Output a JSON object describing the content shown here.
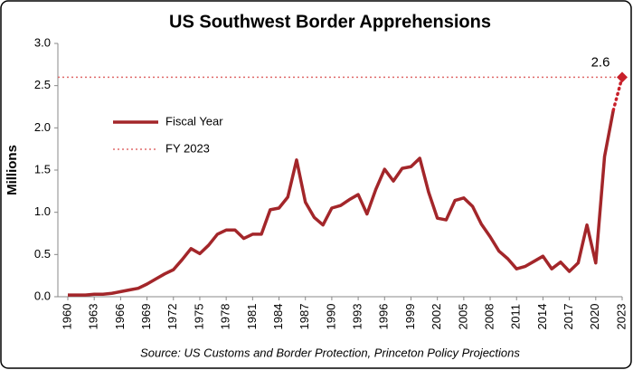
{
  "chart_data": {
    "type": "line",
    "title": "US Southwest Border Apprehensions",
    "ylabel": "Millions",
    "source": "Source: US Customs and Border Protection, Princeton Policy Projections",
    "x": [
      1960,
      1961,
      1962,
      1963,
      1964,
      1965,
      1966,
      1967,
      1968,
      1969,
      1970,
      1971,
      1972,
      1973,
      1974,
      1975,
      1976,
      1977,
      1978,
      1979,
      1980,
      1981,
      1982,
      1983,
      1984,
      1985,
      1986,
      1987,
      1988,
      1989,
      1990,
      1991,
      1992,
      1993,
      1994,
      1995,
      1996,
      1997,
      1998,
      1999,
      2000,
      2001,
      2002,
      2003,
      2004,
      2005,
      2006,
      2007,
      2008,
      2009,
      2010,
      2011,
      2012,
      2013,
      2014,
      2015,
      2016,
      2017,
      2018,
      2019,
      2020,
      2021,
      2022
    ],
    "series": [
      {
        "name": "Fiscal Year",
        "color": "#a3262a",
        "values": [
          0.02,
          0.02,
          0.02,
          0.03,
          0.03,
          0.04,
          0.06,
          0.08,
          0.1,
          0.15,
          0.21,
          0.27,
          0.32,
          0.44,
          0.57,
          0.51,
          0.61,
          0.74,
          0.79,
          0.79,
          0.69,
          0.74,
          0.74,
          1.03,
          1.05,
          1.18,
          1.62,
          1.12,
          0.94,
          0.85,
          1.05,
          1.08,
          1.15,
          1.21,
          0.98,
          1.27,
          1.51,
          1.37,
          1.52,
          1.54,
          1.64,
          1.24,
          0.93,
          0.91,
          1.14,
          1.17,
          1.07,
          0.86,
          0.71,
          0.54,
          0.45,
          0.33,
          0.36,
          0.42,
          0.48,
          0.33,
          0.41,
          0.3,
          0.4,
          0.85,
          0.4,
          1.66,
          2.21
        ]
      }
    ],
    "projection": {
      "x": [
        2022,
        2023
      ],
      "values": [
        2.21,
        2.6
      ],
      "color": "#c8202a"
    },
    "reference": {
      "name": "FY 2023",
      "value": 2.6,
      "color": "#e06b6b"
    },
    "xlim": [
      1960,
      2023
    ],
    "xticks": [
      1960,
      1963,
      1966,
      1969,
      1972,
      1975,
      1978,
      1981,
      1984,
      1987,
      1990,
      1993,
      1996,
      1999,
      2002,
      2005,
      2008,
      2011,
      2014,
      2017,
      2020,
      2023
    ],
    "ylim": [
      0,
      3
    ],
    "yticks": [
      {
        "value": 0,
        "label": "0.0"
      },
      {
        "value": 0.5,
        "label": "0.5"
      },
      {
        "value": 1,
        "label": "1.0"
      },
      {
        "value": 1.5,
        "label": "1.5"
      },
      {
        "value": 2,
        "label": "2.0"
      },
      {
        "value": 2.5,
        "label": "2.5"
      },
      {
        "value": 3,
        "label": "3.0"
      }
    ],
    "grid": false,
    "legend": "upper-left"
  }
}
